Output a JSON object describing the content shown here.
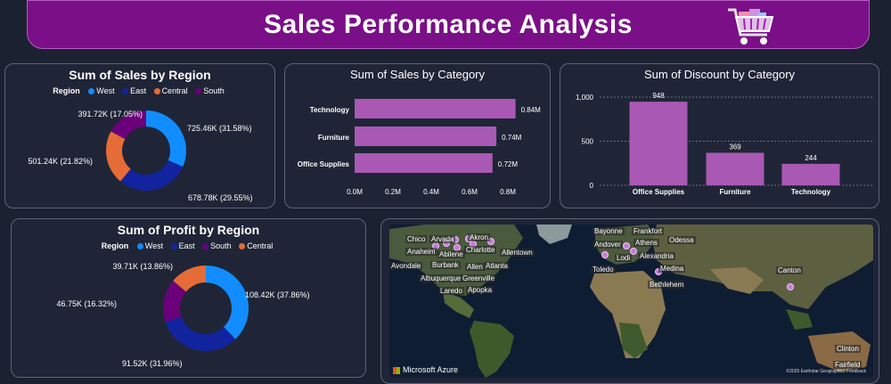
{
  "banner": {
    "title": "Sales Performance Analysis",
    "icon": "shopping-cart-icon"
  },
  "colors": {
    "west": "#118dff",
    "east": "#12239e",
    "central": "#e66c37",
    "south": "#6b007b",
    "bar": "#a958b4",
    "banner": "#7a0f87"
  },
  "chart_data": [
    {
      "id": "sales_by_region",
      "type": "pie",
      "title": "Sum of Sales by Region",
      "legend_title": "Region",
      "legend_order": [
        "West",
        "East",
        "Central",
        "South"
      ],
      "slices": [
        {
          "name": "West",
          "value": 725.46,
          "label": "725.46K (31.58%)"
        },
        {
          "name": "East",
          "value": 678.78,
          "label": "678.78K (29.55%)"
        },
        {
          "name": "Central",
          "value": 501.24,
          "label": "501.24K (21.82%)"
        },
        {
          "name": "South",
          "value": 391.72,
          "label": "391.72K (17.05%)"
        }
      ]
    },
    {
      "id": "sales_by_category",
      "type": "bar",
      "orientation": "horizontal",
      "title": "Sum of Sales by Category",
      "categories": [
        "Technology",
        "Furniture",
        "Office Supplies"
      ],
      "values": [
        0.84,
        0.74,
        0.72
      ],
      "value_labels": [
        "0.84M",
        "0.74M",
        "0.72M"
      ],
      "xlim": [
        0,
        0.8
      ],
      "xticks": [
        "0.0M",
        "0.2M",
        "0.4M",
        "0.6M",
        "0.8M"
      ]
    },
    {
      "id": "discount_by_category",
      "type": "bar",
      "title": "Sum of Discount by Category",
      "categories": [
        "Office Supplies",
        "Furniture",
        "Technology"
      ],
      "values": [
        948,
        369,
        244
      ],
      "value_labels": [
        "948",
        "369",
        "244"
      ],
      "ylim": [
        0,
        1000
      ],
      "yticks": [
        "0",
        "500",
        "1,000"
      ],
      "grid": true
    },
    {
      "id": "profit_by_region",
      "type": "pie",
      "title": "Sum of Profit by Region",
      "legend_title": "Region",
      "legend_order": [
        "West",
        "East",
        "South",
        "Central"
      ],
      "slices": [
        {
          "name": "West",
          "value": 108.42,
          "label": "108.42K (37.86%)"
        },
        {
          "name": "East",
          "value": 91.52,
          "label": "91.52K (31.96%)"
        },
        {
          "name": "South",
          "value": 46.75,
          "label": "46.75K (16.32%)"
        },
        {
          "name": "Central",
          "value": 39.71,
          "label": "39.71K (13.86%)"
        }
      ]
    }
  ],
  "map": {
    "cities": [
      "Chico",
      "Arvada",
      "Akron",
      "Anaheim",
      "Charlotte",
      "Abilene",
      "Allentown",
      "Avondale",
      "Burbank",
      "Allen",
      "Atlanta",
      "Albuquerque",
      "Greenville",
      "Laredo",
      "Apopka",
      "Bayonne",
      "Frankfort",
      "Andover",
      "Athens",
      "Odessa",
      "Lodi",
      "Toledo",
      "Alexandria",
      "Medina",
      "Bethlehem",
      "Canton",
      "Clinton",
      "Fairfield"
    ],
    "attribution": "Microsoft Azure",
    "copyright": "©2025 Earthstar Geographics Feedback"
  }
}
